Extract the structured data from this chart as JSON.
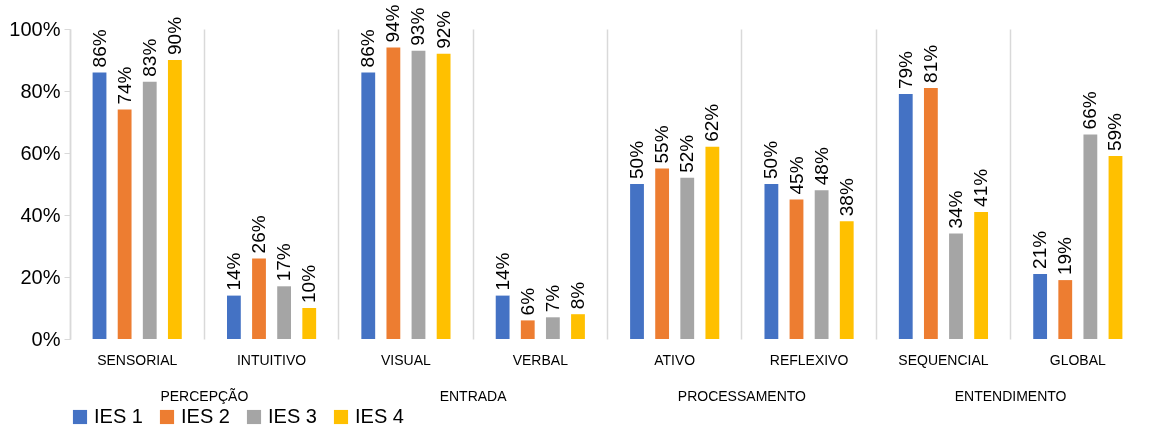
{
  "chart_data": {
    "type": "bar",
    "categories": [
      "SENSORIAL",
      "INTUITIVO",
      "VISUAL",
      "VERBAL",
      "ATIVO",
      "REFLEXIVO",
      "SEQUENCIAL",
      "GLOBAL"
    ],
    "series": [
      {
        "name": "IES 1",
        "color": "#4472c4",
        "values": [
          86,
          14,
          86,
          14,
          50,
          50,
          79,
          21
        ],
        "value_labels": [
          "86%",
          "14%",
          "86%",
          "14%",
          "50%",
          "50%",
          "79%",
          "21%"
        ]
      },
      {
        "name": "IES 2",
        "color": "#ed7d31",
        "values": [
          74,
          26,
          94,
          6,
          55,
          45,
          81,
          19
        ],
        "value_labels": [
          "74%",
          "26%",
          "94%",
          "6%",
          "55%",
          "45%",
          "81%",
          "19%"
        ]
      },
      {
        "name": "IES 3",
        "color": "#a5a5a5",
        "values": [
          83,
          17,
          93,
          7,
          52,
          48,
          34,
          66
        ],
        "value_labels": [
          "83%",
          "17%",
          "93%",
          "7%",
          "52%",
          "48%",
          "34%",
          "66%"
        ]
      },
      {
        "name": "IES 4",
        "color": "#ffc000",
        "values": [
          90,
          10,
          92,
          8,
          62,
          38,
          41,
          59
        ],
        "value_labels": [
          "90%",
          "10%",
          "92%",
          "8%",
          "62%",
          "38%",
          "41%",
          "59%"
        ]
      }
    ],
    "ylim": [
      0,
      100
    ],
    "yticks": [
      {
        "value": 0,
        "label": "0%"
      },
      {
        "value": 20,
        "label": "20%"
      },
      {
        "value": 40,
        "label": "40%"
      },
      {
        "value": 60,
        "label": "60%"
      },
      {
        "value": 80,
        "label": "80%"
      },
      {
        "value": 100,
        "label": "100%"
      }
    ],
    "annotations": [
      "PERCEPÇÃO",
      "ENTRADA",
      "PROCESSAMENTO",
      "ENTENDIMENTO"
    ],
    "grid": "x",
    "legend": "bottom"
  }
}
